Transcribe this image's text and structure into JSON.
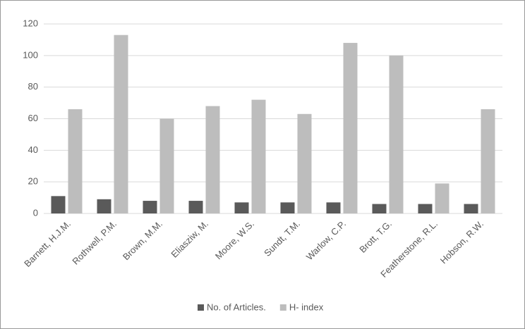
{
  "chart_data": {
    "type": "bar",
    "categories": [
      "Barnett, H.J.M.",
      "Rothwell, P.M.",
      "Brown, M.M.",
      "Eliasziw, M.",
      "Moore, W.S.",
      "Sundt, T.M.",
      "Warlow, C.P.",
      "Brott, T.G.",
      "Featherstone, R.L.",
      "Hobson, R.W."
    ],
    "series": [
      {
        "name": "No. of Articles.",
        "color": "#5a5a5a",
        "values": [
          11,
          9,
          8,
          8,
          7,
          7,
          7,
          6,
          6,
          6
        ]
      },
      {
        "name": "H- index",
        "color": "#bdbdbd",
        "values": [
          66,
          113,
          60,
          68,
          72,
          63,
          108,
          100,
          19,
          66
        ]
      }
    ],
    "ylim": [
      0,
      120
    ],
    "yticks": [
      0,
      20,
      40,
      60,
      80,
      100,
      120
    ],
    "grid": true,
    "legend": "bottom"
  }
}
